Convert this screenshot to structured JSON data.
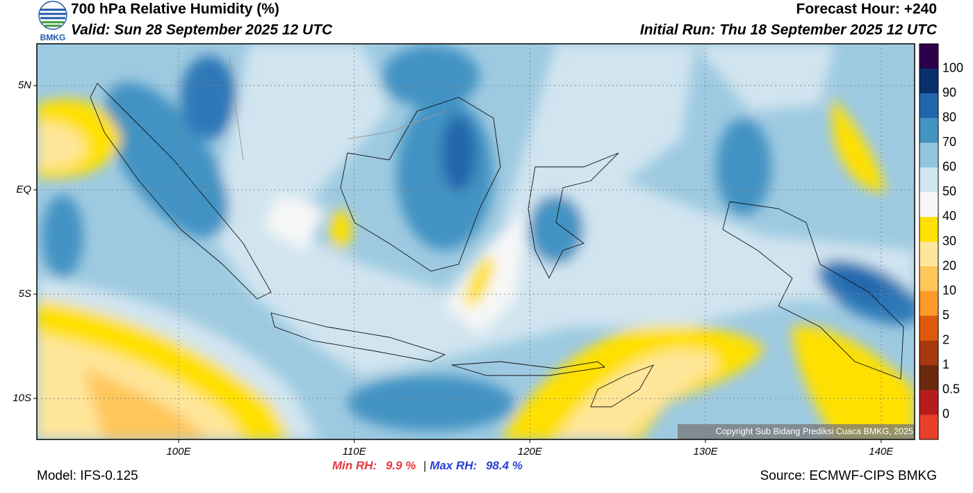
{
  "header": {
    "title": "700 hPa Relative Humidity (%)",
    "valid": "Valid: Sun 28 September 2025 12 UTC",
    "forecast_hour": "Forecast Hour: +240",
    "initial_run": "Initial Run: Thu 18 September 2025 12 UTC",
    "logo_text": "BMKG"
  },
  "map": {
    "lat_labels": [
      "5N",
      "EQ",
      "5S",
      "10S"
    ],
    "lon_labels": [
      "100E",
      "110E",
      "120E",
      "130E",
      "140E"
    ],
    "copyright": "Copyright Sub Bidang Prediksi Cuaca BMKG, 2025"
  },
  "colorbar": {
    "colors": [
      "#2d004b",
      "#08306b",
      "#2166ac",
      "#4393c3",
      "#92c5de",
      "#d1e5f0",
      "#f7f7f7",
      "#ffe000",
      "#ffe59a",
      "#ffc65a",
      "#fd9a2a",
      "#dd5a0c",
      "#a8380e",
      "#6b2a10",
      "#b51d1d",
      "#e8402a"
    ],
    "labels": [
      100,
      90,
      80,
      70,
      60,
      50,
      40,
      30,
      20,
      10,
      5,
      2,
      1,
      0.5,
      0
    ]
  },
  "footer": {
    "min_label": "Min RH:",
    "min_value": "9.9 %",
    "separator": "|",
    "max_label": "Max RH:",
    "max_value": "98.4 %",
    "model": "Model: IFS-0.125",
    "source": "Source: ECMWF-CIPS BMKG"
  }
}
